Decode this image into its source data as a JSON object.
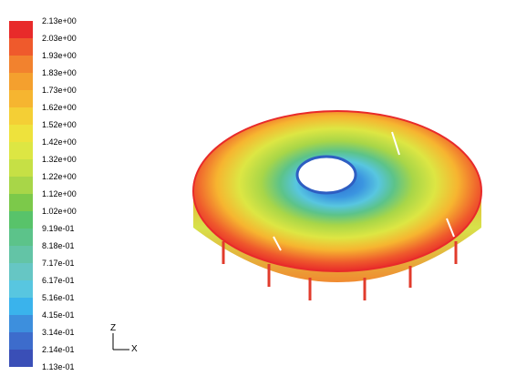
{
  "legend": {
    "colors": [
      "#e82a2a",
      "#ef5a2c",
      "#f2822e",
      "#f4a02e",
      "#f6b530",
      "#f4cf35",
      "#eee23c",
      "#dde643",
      "#c6e045",
      "#a8d648",
      "#7cc94a",
      "#58c36a",
      "#5cc38a",
      "#63c4a6",
      "#66c6c4",
      "#58c6e0",
      "#3ab3ec",
      "#3d8fdd",
      "#3d6ccc",
      "#3a4fb7"
    ],
    "labels": [
      "2.13e+00",
      "2.03e+00",
      "1.93e+00",
      "1.83e+00",
      "1.73e+00",
      "1.62e+00",
      "1.52e+00",
      "1.42e+00",
      "1.32e+00",
      "1.22e+00",
      "1.12e+00",
      "1.02e+00",
      "9.19e-01",
      "8.18e-01",
      "7.17e-01",
      "6.17e-01",
      "5.16e-01",
      "4.15e-01",
      "3.14e-01",
      "2.14e-01",
      "1.13e-01"
    ]
  },
  "axes": {
    "z_label": "Z",
    "x_label": "X"
  }
}
